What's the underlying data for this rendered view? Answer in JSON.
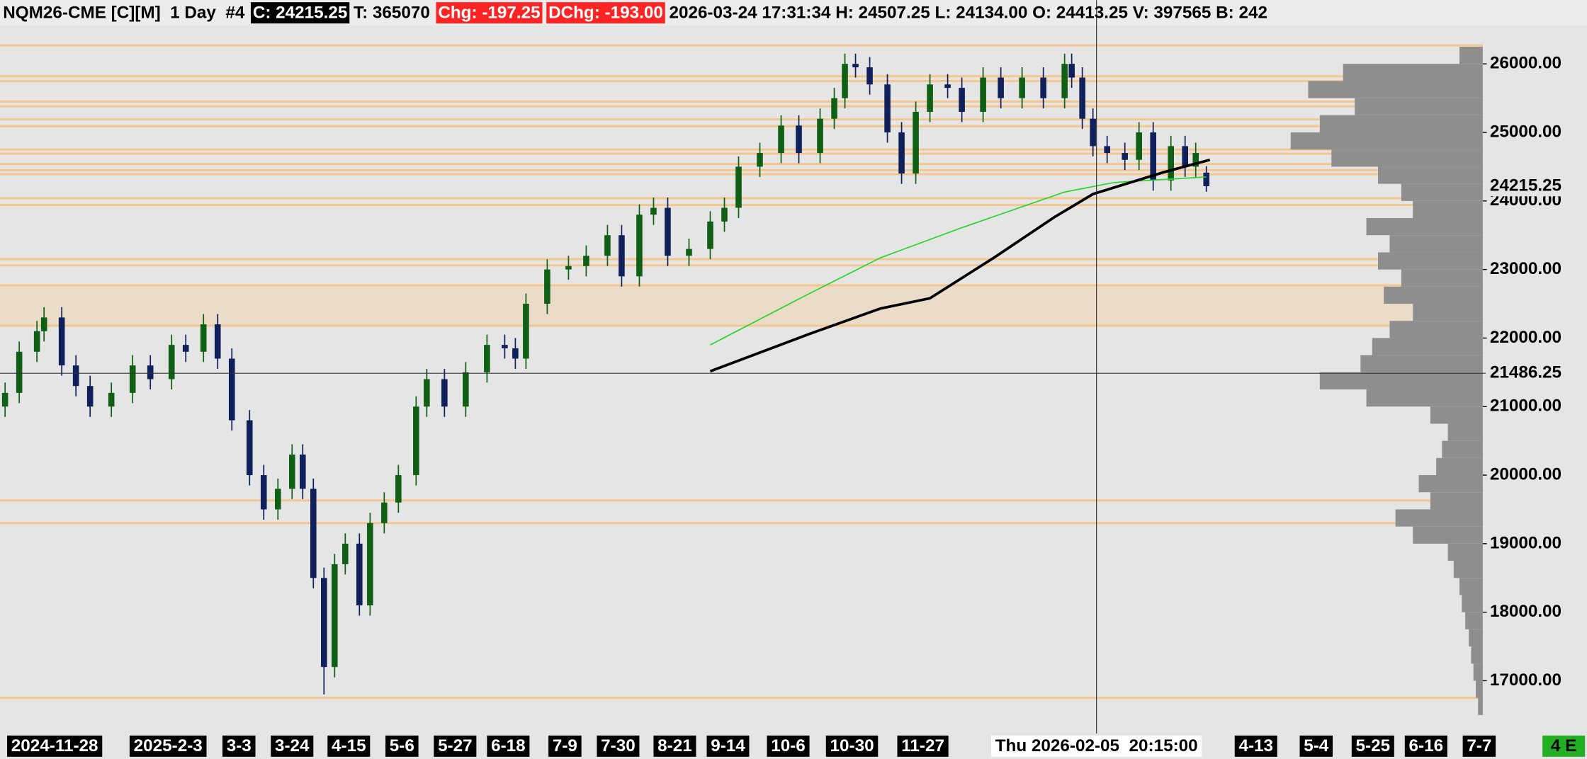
{
  "chart_data": {
    "type": "candlestick",
    "header": [
      {
        "text": "NQM26-CME [C][M]  1 Day  #4"
      },
      {
        "text": "C: 24215.25",
        "box": "#000000",
        "color": "#ffffff"
      },
      {
        "text": "T: 365070"
      },
      {
        "text": "Chg: -197.25",
        "box": "#ff2424",
        "color": "#ffffff"
      },
      {
        "text": "DChg: -193.00",
        "box": "#ff2424",
        "color": "#ffffff"
      },
      {
        "text": "2026-03-24 17:31:34 H: 24507.25 L: 24134.00 O: 24413.25 V: 397565 B: 242"
      }
    ],
    "x": [
      0,
      4,
      9,
      11,
      16,
      20,
      24,
      30,
      36,
      41,
      47,
      51,
      56,
      60,
      64,
      69,
      73,
      77,
      81,
      84,
      87,
      90,
      93,
      96,
      100,
      103,
      107,
      111,
      116,
      119,
      124,
      130,
      136,
      141,
      144,
      147,
      153,
      159,
      164,
      170,
      174,
      179,
      183,
      187,
      193,
      199,
      203,
      207,
      213,
      219,
      224,
      230,
      234,
      237,
      240,
      244,
      249,
      253,
      257,
      261,
      266,
      270,
      276,
      281,
      287,
      293,
      299,
      301,
      304,
      307,
      311,
      316,
      320,
      324,
      329,
      333,
      336,
      339
    ],
    "open": [
      21000,
      21200,
      21800,
      22100,
      22300,
      21600,
      21300,
      21000,
      21200,
      21600,
      21400,
      21900,
      21800,
      22200,
      21700,
      20800,
      20000,
      19500,
      19800,
      20300,
      19800,
      18500,
      17200,
      18700,
      19000,
      18100,
      19300,
      19600,
      20000,
      21000,
      21400,
      21000,
      21500,
      21900,
      21850,
      21700,
      22500,
      23000,
      23050,
      23200,
      23500,
      22900,
      23800,
      23900,
      23200,
      23300,
      23700,
      23900,
      24500,
      24700,
      25100,
      24700,
      25200,
      25500,
      26000,
      25950,
      25700,
      25000,
      24400,
      25300,
      25700,
      25650,
      25300,
      25800,
      25500,
      25800,
      25500,
      26000,
      25800,
      25200,
      24800,
      24700,
      24600,
      25000,
      24300,
      24800,
      24500,
      24413.25
    ],
    "high": [
      21350,
      21950,
      22250,
      22450,
      22450,
      21750,
      21450,
      21350,
      21750,
      21750,
      22050,
      22050,
      22350,
      22350,
      21850,
      20950,
      20150,
      19950,
      20450,
      20450,
      19950,
      18650,
      18850,
      19150,
      19150,
      19450,
      19750,
      20150,
      21150,
      21550,
      21550,
      21650,
      22050,
      22050,
      22000,
      22650,
      23150,
      23200,
      23350,
      23650,
      23650,
      23950,
      24050,
      24050,
      23450,
      23850,
      24050,
      24650,
      24850,
      25250,
      25250,
      25350,
      25650,
      26150,
      26150,
      26100,
      25850,
      25150,
      25450,
      25850,
      25850,
      25800,
      25950,
      25950,
      25950,
      25950,
      26150,
      26150,
      25950,
      25350,
      24950,
      24850,
      25150,
      25150,
      24950,
      24950,
      24850,
      24507.25
    ],
    "low": [
      20850,
      21050,
      21650,
      21950,
      21450,
      21150,
      20850,
      20850,
      21050,
      21250,
      21250,
      21650,
      21650,
      21550,
      20650,
      19850,
      19350,
      19350,
      19650,
      19650,
      18350,
      16800,
      17050,
      18550,
      17950,
      17950,
      19150,
      19450,
      19850,
      20850,
      20850,
      20850,
      21350,
      21700,
      21550,
      21550,
      22350,
      22850,
      22900,
      23050,
      22750,
      22750,
      23650,
      23050,
      23050,
      23150,
      23550,
      23750,
      24350,
      24550,
      24550,
      24550,
      25050,
      25350,
      25800,
      25550,
      24850,
      24250,
      24250,
      25150,
      25500,
      25150,
      25150,
      25350,
      25350,
      25350,
      25350,
      25650,
      25050,
      24650,
      24550,
      24450,
      24450,
      24150,
      24150,
      24350,
      24350,
      24134
    ],
    "close": [
      21200,
      21800,
      22100,
      22300,
      21600,
      21300,
      21000,
      21200,
      21600,
      21400,
      21900,
      21800,
      22200,
      21700,
      20800,
      20000,
      19500,
      19800,
      20300,
      19800,
      18500,
      17200,
      18700,
      19000,
      18100,
      19300,
      19600,
      20000,
      21000,
      21400,
      21000,
      21500,
      21900,
      21850,
      21700,
      22500,
      23000,
      23050,
      23200,
      23500,
      22900,
      23800,
      23900,
      23200,
      23300,
      23700,
      23900,
      24500,
      24700,
      25100,
      24700,
      25200,
      25500,
      26000,
      25950,
      25700,
      25000,
      24400,
      25300,
      25700,
      25650,
      25300,
      25800,
      25500,
      25800,
      25500,
      26000,
      25800,
      25200,
      24800,
      24700,
      24600,
      25000,
      24300,
      24800,
      24500,
      24700,
      24215.25
    ],
    "up_color": "#0f5f14",
    "down_color": "#10205a",
    "lines": [
      {
        "color": "#2ad42a",
        "width": 1.2,
        "x": [
          199,
          227,
          247,
          270,
          299,
          313,
          339
        ],
        "values": [
          21900,
          22650,
          23170,
          23610,
          24130,
          24270,
          24350
        ]
      },
      {
        "color": "#000000",
        "width": 2.6,
        "x": [
          199,
          227,
          247,
          261,
          279,
          296,
          307,
          327,
          340
        ],
        "values": [
          21515,
          22060,
          22430,
          22580,
          23170,
          23760,
          24100,
          24420,
          24600
        ]
      }
    ],
    "levels": {
      "color": "#f6c58c",
      "values": [
        26270,
        25820,
        25750,
        25450,
        25380,
        25190,
        25090,
        24750,
        24690,
        24540,
        24450,
        24390,
        24040,
        23940,
        23150,
        23060,
        22770,
        22180,
        19630,
        19300,
        16750
      ]
    },
    "band": {
      "color": "#eadcc8",
      "range": [
        22180,
        22770
      ]
    },
    "profile": {
      "color": "#8e8e8e",
      "prices": [
        26250,
        26000,
        25750,
        25500,
        25250,
        25000,
        24750,
        24500,
        24250,
        24000,
        23750,
        23500,
        23250,
        23000,
        22750,
        22500,
        22250,
        22000,
        21750,
        21500,
        21250,
        21000,
        20750,
        20500,
        20250,
        20000,
        19750,
        19500,
        19250,
        19000,
        18750,
        18500,
        18250,
        18000,
        17750,
        17500,
        17250,
        17000,
        16750
      ],
      "volumes": [
        20,
        120,
        150,
        110,
        140,
        165,
        130,
        90,
        70,
        60,
        100,
        80,
        90,
        70,
        85,
        60,
        80,
        95,
        105,
        140,
        100,
        45,
        30,
        35,
        40,
        55,
        45,
        75,
        60,
        30,
        25,
        20,
        18,
        15,
        12,
        10,
        8,
        6,
        4
      ],
      "xlim": [
        0,
        200
      ]
    },
    "xlim": [
      0,
      417
    ],
    "ylim": [
      16230,
      26560
    ],
    "xticks": [
      {
        "value": 14,
        "label": "2024-11-28"
      },
      {
        "value": 46,
        "label": "2025-2-3"
      },
      {
        "value": 66,
        "label": "3-3"
      },
      {
        "value": 81,
        "label": "3-24"
      },
      {
        "value": 97,
        "label": "4-15"
      },
      {
        "value": 112,
        "label": "5-6"
      },
      {
        "value": 127,
        "label": "5-27"
      },
      {
        "value": 142,
        "label": "6-18"
      },
      {
        "value": 158,
        "label": "7-9"
      },
      {
        "value": 173,
        "label": "7-30"
      },
      {
        "value": 189,
        "label": "8-21"
      },
      {
        "value": 204,
        "label": "9-14"
      },
      {
        "value": 221,
        "label": "10-6"
      },
      {
        "value": 239,
        "label": "10-30"
      },
      {
        "value": 259,
        "label": "11-27"
      },
      {
        "value": 353,
        "label": "4-13"
      },
      {
        "value": 370,
        "label": "5-4"
      },
      {
        "value": 386,
        "label": "5-25"
      },
      {
        "value": 401,
        "label": "6-16"
      },
      {
        "value": 416,
        "label": "7-7"
      }
    ],
    "yticks": [
      {
        "value": 26000,
        "label": "26000.00"
      },
      {
        "value": 25000,
        "label": "25000.00"
      },
      {
        "value": 24000,
        "label": "24000.00"
      },
      {
        "value": 23000,
        "label": "23000.00"
      },
      {
        "value": 22000,
        "label": "22000.00"
      },
      {
        "value": 21000,
        "label": "21000.00"
      },
      {
        "value": 20000,
        "label": "20000.00"
      },
      {
        "value": 19000,
        "label": "19000.00"
      },
      {
        "value": 18000,
        "label": "18000.00"
      },
      {
        "value": 17000,
        "label": "17000.00"
      }
    ],
    "last_price": {
      "value": 24215.25,
      "label": "24215.25"
    },
    "crosshair": {
      "x": {
        "value": 308,
        "label": "Thu 2026-02-05  20:15:00"
      },
      "y": {
        "value": 21486.25,
        "label": "21486.25"
      }
    },
    "status": {
      "text": "4 E",
      "box": "#22b022"
    }
  }
}
